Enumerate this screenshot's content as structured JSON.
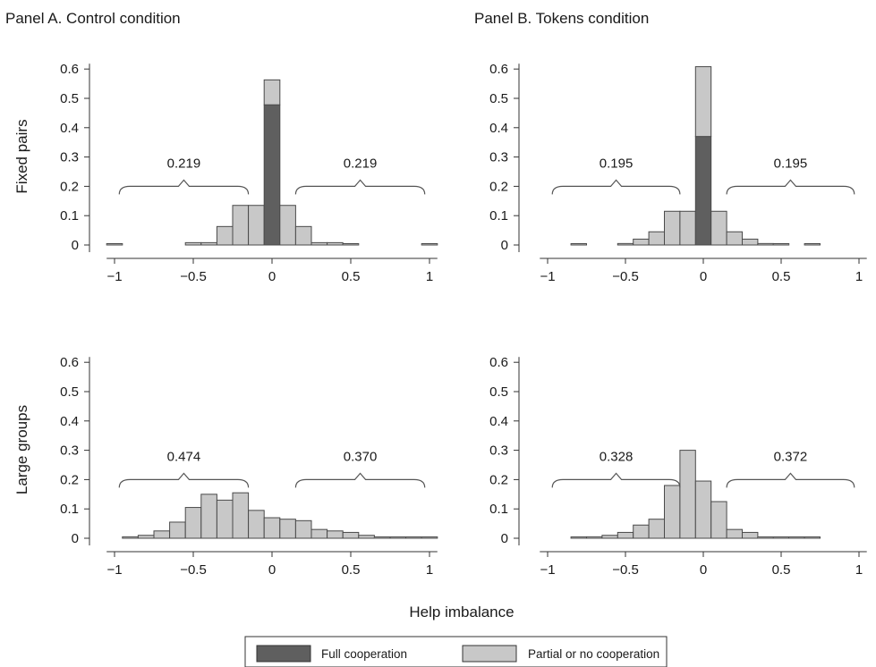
{
  "figure": {
    "panel_titles": [
      "Panel A. Control condition",
      "Panel B. Tokens condition"
    ],
    "row_labels": [
      "Fixed pairs",
      "Large groups"
    ],
    "x_axis_title": "Help imbalance",
    "legend": [
      {
        "label": "Full cooperation",
        "color": "#5f5f5f"
      },
      {
        "label": "Partial or no cooperation",
        "color": "#c8c8c8"
      }
    ]
  },
  "chart_data": [
    {
      "type": "bar",
      "subtype": "stacked histogram",
      "panel": "Panel A. Control condition",
      "row": "Fixed pairs",
      "ylabel": "Fixed pairs",
      "xlabel": "Help imbalance",
      "xlim": [
        -1.05,
        1.05
      ],
      "ylim": [
        0,
        0.65
      ],
      "xticks": [
        -1,
        -0.5,
        0,
        0.5,
        1
      ],
      "xtick_labels": [
        "−1",
        "−0.5",
        "0",
        "0.5",
        "1"
      ],
      "yticks": [
        0,
        0.1,
        0.2,
        0.3,
        0.4,
        0.5,
        0.6
      ],
      "ytick_labels": [
        "0",
        "0.1",
        "0.2",
        "0.3",
        "0.4",
        "0.5",
        "0.6"
      ],
      "bin_width": 0.1,
      "bin_centers": [
        -1,
        -0.5,
        -0.4,
        -0.3,
        -0.2,
        -0.1,
        0,
        0.1,
        0.2,
        0.3,
        0.4,
        0.5,
        1
      ],
      "series": [
        {
          "name": "Full cooperation",
          "values": [
            0,
            0,
            0,
            0,
            0,
            0,
            0.478,
            0,
            0,
            0,
            0,
            0,
            0
          ]
        },
        {
          "name": "Partial or no cooperation",
          "values": [
            0.004,
            0.008,
            0.008,
            0.063,
            0.135,
            0.135,
            0.085,
            0.135,
            0.063,
            0.008,
            0.008,
            0.004,
            0.004
          ]
        }
      ],
      "annotations": [
        {
          "label": "0.219",
          "from": -0.97,
          "to": -0.15
        },
        {
          "label": "0.219",
          "from": 0.15,
          "to": 0.97
        }
      ]
    },
    {
      "type": "bar",
      "subtype": "stacked histogram",
      "panel": "Panel B. Tokens condition",
      "row": "Fixed pairs",
      "ylabel": "",
      "xlabel": "Help imbalance",
      "xlim": [
        -1.05,
        1.05
      ],
      "ylim": [
        0,
        0.65
      ],
      "xticks": [
        -1,
        -0.5,
        0,
        0.5,
        1
      ],
      "xtick_labels": [
        "−1",
        "−0.5",
        "0",
        "0.5",
        "1"
      ],
      "yticks": [
        0,
        0.1,
        0.2,
        0.3,
        0.4,
        0.5,
        0.6
      ],
      "ytick_labels": [
        "0",
        "0.1",
        "0.2",
        "0.3",
        "0.4",
        "0.5",
        "0.6"
      ],
      "bin_width": 0.1,
      "bin_centers": [
        -0.8,
        -0.5,
        -0.4,
        -0.3,
        -0.2,
        -0.1,
        0,
        0.1,
        0.2,
        0.3,
        0.4,
        0.5,
        0.7
      ],
      "series": [
        {
          "name": "Full cooperation",
          "values": [
            0,
            0,
            0,
            0,
            0,
            0,
            0.37,
            0,
            0,
            0,
            0,
            0,
            0
          ]
        },
        {
          "name": "Partial or no cooperation",
          "values": [
            0.002,
            0.005,
            0.02,
            0.045,
            0.115,
            0.115,
            0.238,
            0.115,
            0.045,
            0.02,
            0.005,
            0.002,
            0.002
          ]
        }
      ],
      "annotations": [
        {
          "label": "0.195",
          "from": -0.97,
          "to": -0.15
        },
        {
          "label": "0.195",
          "from": 0.15,
          "to": 0.97
        }
      ]
    },
    {
      "type": "bar",
      "subtype": "stacked histogram",
      "panel": "Panel A. Control condition",
      "row": "Large groups",
      "ylabel": "Large groups",
      "xlabel": "Help imbalance",
      "xlim": [
        -1.05,
        1.05
      ],
      "ylim": [
        0,
        0.65
      ],
      "xticks": [
        -1,
        -0.5,
        0,
        0.5,
        1
      ],
      "xtick_labels": [
        "−1",
        "−0.5",
        "0",
        "0.5",
        "1"
      ],
      "yticks": [
        0,
        0.1,
        0.2,
        0.3,
        0.4,
        0.5,
        0.6
      ],
      "ytick_labels": [
        "0",
        "0.1",
        "0.2",
        "0.3",
        "0.4",
        "0.5",
        "0.6"
      ],
      "bin_width": 0.1,
      "bin_centers": [
        -0.9,
        -0.8,
        -0.7,
        -0.6,
        -0.5,
        -0.4,
        -0.3,
        -0.2,
        -0.1,
        0,
        0.1,
        0.2,
        0.3,
        0.4,
        0.5,
        0.6,
        0.7,
        0.8,
        0.9,
        1.0
      ],
      "series": [
        {
          "name": "Full cooperation",
          "values": [
            0,
            0,
            0,
            0,
            0,
            0,
            0,
            0,
            0,
            0,
            0,
            0,
            0,
            0,
            0,
            0,
            0,
            0,
            0,
            0
          ]
        },
        {
          "name": "Partial or no cooperation",
          "values": [
            0.005,
            0.01,
            0.025,
            0.055,
            0.105,
            0.15,
            0.13,
            0.155,
            0.095,
            0.07,
            0.065,
            0.06,
            0.03,
            0.025,
            0.02,
            0.01,
            0,
            0,
            0,
            0
          ]
        }
      ],
      "annotations": [
        {
          "label": "0.474",
          "from": -0.97,
          "to": -0.15
        },
        {
          "label": "0.370",
          "from": 0.15,
          "to": 0.97
        }
      ]
    },
    {
      "type": "bar",
      "subtype": "stacked histogram",
      "panel": "Panel B. Tokens condition",
      "row": "Large groups",
      "ylabel": "",
      "xlabel": "Help imbalance",
      "xlim": [
        -1.05,
        1.05
      ],
      "ylim": [
        0,
        0.65
      ],
      "xticks": [
        -1,
        -0.5,
        0,
        0.5,
        1
      ],
      "xtick_labels": [
        "−1",
        "−0.5",
        "0",
        "0.5",
        "1"
      ],
      "yticks": [
        0,
        0.1,
        0.2,
        0.3,
        0.4,
        0.5,
        0.6
      ],
      "ytick_labels": [
        "0",
        "0.1",
        "0.2",
        "0.3",
        "0.4",
        "0.5",
        "0.6"
      ],
      "bin_width": 0.1,
      "bin_centers": [
        -0.8,
        -0.7,
        -0.6,
        -0.5,
        -0.4,
        -0.3,
        -0.2,
        -0.1,
        0,
        0.1,
        0.2,
        0.3,
        0.4,
        0.5,
        0.6,
        0.7
      ],
      "series": [
        {
          "name": "Full cooperation",
          "values": [
            0,
            0,
            0,
            0,
            0,
            0,
            0,
            0,
            0,
            0,
            0,
            0,
            0,
            0,
            0,
            0
          ]
        },
        {
          "name": "Partial or no cooperation",
          "values": [
            0.002,
            0.005,
            0.01,
            0.02,
            0.045,
            0.065,
            0.18,
            0.3,
            0.195,
            0.125,
            0.03,
            0.02,
            0.003,
            0.003,
            0.003,
            0.003
          ]
        }
      ],
      "annotations": [
        {
          "label": "0.328",
          "from": -0.97,
          "to": -0.15
        },
        {
          "label": "0.372",
          "from": 0.15,
          "to": 0.97
        }
      ]
    }
  ]
}
